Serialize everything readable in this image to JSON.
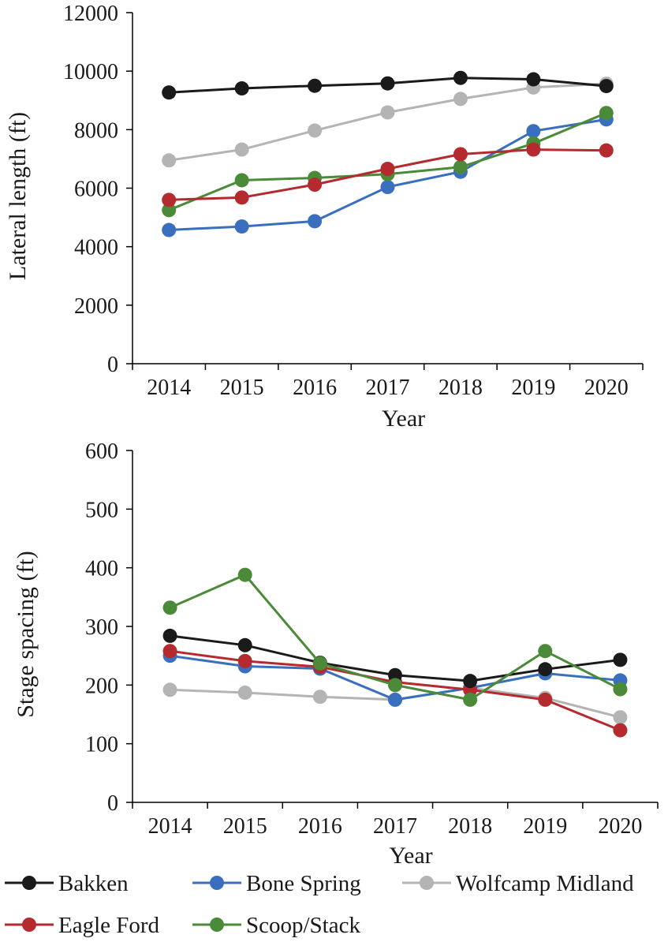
{
  "chart_data": [
    {
      "type": "line",
      "title": "",
      "xlabel": "Year",
      "ylabel": "Lateral length (ft)",
      "x": [
        "2014",
        "2015",
        "2016",
        "2017",
        "2018",
        "2019",
        "2020"
      ],
      "ylim": [
        0,
        12000
      ],
      "yticks": [
        "0",
        "2000",
        "4000",
        "6000",
        "8000",
        "10000",
        "12000"
      ],
      "grid": false,
      "series": [
        {
          "name": "Wolfcamp Midland",
          "color": "#b4b4b4",
          "values": [
            6950,
            7320,
            7970,
            8590,
            9050,
            9440,
            9570
          ]
        },
        {
          "name": "Bone Spring",
          "color": "#3a6fc0",
          "values": [
            4570,
            4690,
            4870,
            6040,
            6560,
            7950,
            8350
          ]
        },
        {
          "name": "Scoop/Stack",
          "color": "#4a8a38",
          "values": [
            5250,
            6270,
            6350,
            6480,
            6720,
            7530,
            8570
          ]
        },
        {
          "name": "Eagle Ford",
          "color": "#b52a2f",
          "values": [
            5600,
            5680,
            6120,
            6660,
            7160,
            7320,
            7290
          ]
        },
        {
          "name": "Bakken",
          "color": "#1a1a1a",
          "values": [
            9270,
            9410,
            9500,
            9580,
            9770,
            9720,
            9490
          ]
        }
      ]
    },
    {
      "type": "line",
      "title": "",
      "xlabel": "Year",
      "ylabel": "Stage spacing (ft)",
      "x": [
        "2014",
        "2015",
        "2016",
        "2017",
        "2018",
        "2019",
        "2020"
      ],
      "ylim": [
        0,
        600
      ],
      "yticks": [
        "0",
        "100",
        "200",
        "300",
        "400",
        "500",
        "600"
      ],
      "grid": false,
      "series": [
        {
          "name": "Wolfcamp Midland",
          "color": "#b4b4b4",
          "values": [
            192,
            187,
            180,
            175,
            195,
            178,
            145
          ]
        },
        {
          "name": "Bone Spring",
          "color": "#3a6fc0",
          "values": [
            250,
            232,
            228,
            175,
            195,
            220,
            208
          ]
        },
        {
          "name": "Eagle Ford",
          "color": "#b52a2f",
          "values": [
            258,
            241,
            231,
            205,
            192,
            175,
            123
          ]
        },
        {
          "name": "Bakken",
          "color": "#1a1a1a",
          "values": [
            284,
            268,
            238,
            217,
            207,
            227,
            243
          ]
        },
        {
          "name": "Scoop/Stack",
          "color": "#4a8a38",
          "values": [
            332,
            388,
            237,
            200,
            175,
            258,
            193
          ]
        }
      ]
    }
  ],
  "legend": {
    "placement": "bottom",
    "items": [
      {
        "name": "Bakken",
        "color": "#1a1a1a"
      },
      {
        "name": "Bone Spring",
        "color": "#3a6fc0"
      },
      {
        "name": "Wolfcamp Midland",
        "color": "#b4b4b4"
      },
      {
        "name": "Eagle Ford",
        "color": "#b52a2f"
      },
      {
        "name": "Scoop/Stack",
        "color": "#4a8a38"
      }
    ]
  }
}
